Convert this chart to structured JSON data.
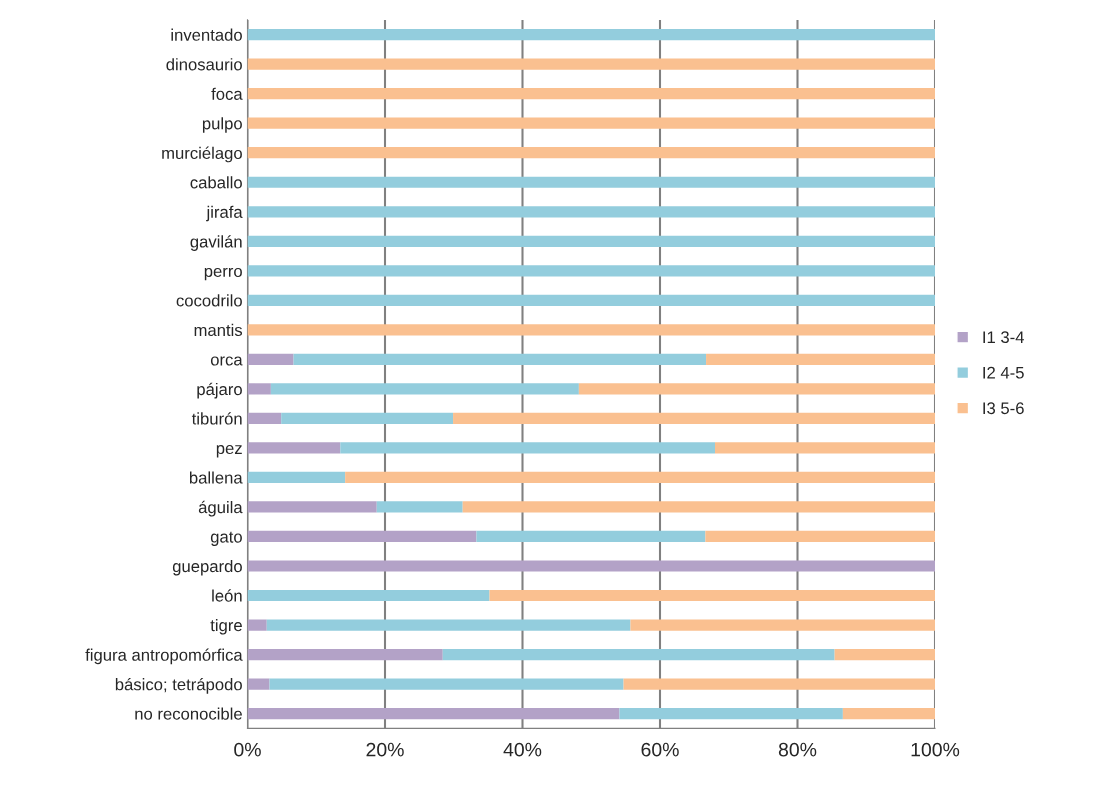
{
  "chart_data": {
    "type": "bar",
    "orientation": "horizontal",
    "stacked": true,
    "categories": [
      "inventado",
      "dinosaurio",
      "foca",
      "pulpo",
      "murciélago",
      "caballo",
      "jirafa",
      "gavilán",
      "perro",
      "cocodrilo",
      "mantis",
      "orca",
      "pájaro",
      "tiburón",
      "pez",
      "ballena",
      "águila",
      "gato",
      "guepardo",
      "león",
      "tigre",
      "figura antropomórfica",
      "básico; tetrápodo",
      "no reconocible"
    ],
    "series": [
      {
        "name": "I1 3-4",
        "color": "#b3a2c7",
        "values": [
          0,
          0,
          0,
          0,
          0,
          0,
          0,
          0,
          0,
          0,
          0,
          6.7,
          3.4,
          4.9,
          13.5,
          0,
          18.8,
          33.3,
          100,
          0,
          2.8,
          28.4,
          3.2,
          54.1
        ]
      },
      {
        "name": "I2 4-5",
        "color": "#93cddd",
        "values": [
          100,
          0,
          0,
          0,
          0,
          100,
          100,
          100,
          100,
          100,
          0,
          60,
          44.8,
          25,
          54.5,
          14.2,
          12.5,
          33.3,
          0,
          35.2,
          52.9,
          57,
          51.5,
          32.5
        ]
      },
      {
        "name": "I3 5-6",
        "color": "#fac090",
        "values": [
          0,
          100,
          100,
          100,
          100,
          0,
          0,
          0,
          0,
          0,
          100,
          33.3,
          51.8,
          70.1,
          32,
          85.8,
          68.7,
          33.4,
          0,
          64.8,
          44.3,
          14.6,
          45.3,
          13.4
        ]
      }
    ],
    "xlim": [
      0,
      100
    ],
    "xticks": [
      {
        "value": 0,
        "label": "0%"
      },
      {
        "value": 20,
        "label": "20%"
      },
      {
        "value": 40,
        "label": "40%"
      },
      {
        "value": 60,
        "label": "60%"
      },
      {
        "value": 80,
        "label": "80%"
      },
      {
        "value": 100,
        "label": "100%"
      }
    ],
    "grid": "x",
    "legend": "right"
  }
}
